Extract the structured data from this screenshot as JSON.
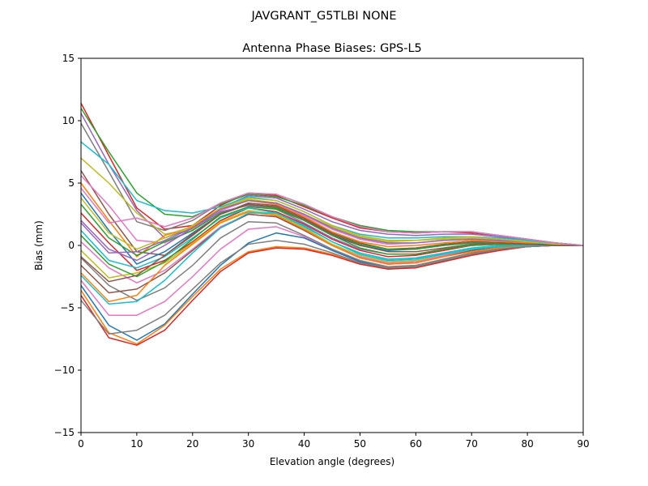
{
  "chart_data": {
    "type": "line",
    "suptitle": "JAVGRANT_G5TLBI NONE",
    "title": "Antenna Phase Biases: GPS-L5",
    "xlabel": "Elevation angle (degrees)",
    "ylabel": "Bias (mm)",
    "xlim": [
      0,
      90
    ],
    "ylim": [
      -15,
      15
    ],
    "xticks": [
      0,
      10,
      20,
      30,
      40,
      50,
      60,
      70,
      80,
      90
    ],
    "yticks": [
      -15,
      -10,
      -5,
      0,
      5,
      10,
      15
    ],
    "ytick_labels": [
      "−15",
      "−10",
      "−5",
      "0",
      "5",
      "10",
      "15"
    ],
    "xtick_labels": [
      "0",
      "10",
      "20",
      "30",
      "40",
      "50",
      "60",
      "70",
      "80",
      "90"
    ],
    "grid": false,
    "legend": "none",
    "x": [
      0,
      5,
      10,
      15,
      20,
      25,
      30,
      35,
      40,
      45,
      50,
      55,
      60,
      65,
      70,
      75,
      80,
      85,
      90
    ],
    "series": [
      {
        "color": "#d62728",
        "values": [
          11.4,
          7.2,
          3.0,
          1.3,
          1.6,
          3.2,
          4.2,
          4.0,
          3.1,
          2.2,
          1.4,
          1.1,
          1.0,
          1.1,
          1.0,
          0.8,
          0.5,
          0.2,
          0.0
        ]
      },
      {
        "color": "#2ca02c",
        "values": [
          11.0,
          7.5,
          4.2,
          2.5,
          2.3,
          3.3,
          4.1,
          3.9,
          3.2,
          2.3,
          1.6,
          1.2,
          1.1,
          1.1,
          1.1,
          0.8,
          0.5,
          0.2,
          0.0
        ]
      },
      {
        "color": "#9467bd",
        "values": [
          10.6,
          6.5,
          2.8,
          0.6,
          1.4,
          3.0,
          4.0,
          3.8,
          2.9,
          1.9,
          1.2,
          0.9,
          0.8,
          0.9,
          0.9,
          0.7,
          0.4,
          0.2,
          0.0
        ]
      },
      {
        "color": "#7f7f7f",
        "values": [
          9.8,
          5.9,
          1.9,
          1.2,
          2.0,
          3.4,
          4.2,
          4.1,
          3.3,
          2.3,
          1.5,
          1.1,
          1.0,
          1.1,
          1.1,
          0.8,
          0.5,
          0.2,
          0.0
        ]
      },
      {
        "color": "#17becf",
        "values": [
          8.3,
          6.5,
          3.6,
          2.8,
          2.6,
          3.1,
          3.9,
          3.6,
          2.7,
          1.6,
          0.9,
          0.6,
          0.6,
          0.7,
          0.7,
          0.6,
          0.4,
          0.2,
          0.0
        ]
      },
      {
        "color": "#bcbd22",
        "values": [
          7.0,
          5.0,
          2.6,
          0.9,
          1.3,
          2.9,
          3.7,
          3.4,
          2.5,
          1.5,
          0.7,
          0.3,
          0.4,
          0.5,
          0.6,
          0.5,
          0.3,
          0.1,
          0.0
        ]
      },
      {
        "color": "#8c564b",
        "values": [
          6.0,
          2.5,
          -0.5,
          -0.8,
          0.8,
          2.5,
          3.4,
          3.2,
          2.2,
          1.0,
          0.2,
          -0.3,
          -0.2,
          0.1,
          0.3,
          0.3,
          0.2,
          0.1,
          0.0
        ]
      },
      {
        "color": "#e377c2",
        "values": [
          5.6,
          3.2,
          0.4,
          0.2,
          1.2,
          2.8,
          3.6,
          3.4,
          2.4,
          1.3,
          0.5,
          0.1,
          0.2,
          0.4,
          0.5,
          0.4,
          0.3,
          0.1,
          0.0
        ]
      },
      {
        "color": "#ff7f0e",
        "values": [
          5.0,
          2.0,
          -0.9,
          0.8,
          1.5,
          2.9,
          3.6,
          3.3,
          2.3,
          1.1,
          0.3,
          -0.1,
          0.0,
          0.2,
          0.4,
          0.3,
          0.2,
          0.1,
          0.0
        ]
      },
      {
        "color": "#1f77b4",
        "values": [
          4.2,
          1.2,
          -1.5,
          -0.5,
          1.0,
          2.5,
          3.3,
          3.0,
          2.0,
          0.8,
          0.0,
          -0.4,
          -0.3,
          0.0,
          0.2,
          0.2,
          0.1,
          0.1,
          0.0
        ]
      },
      {
        "color": "#2ca02c",
        "values": [
          3.3,
          0.6,
          -0.8,
          0.3,
          1.2,
          2.6,
          3.3,
          3.0,
          2.0,
          0.9,
          0.1,
          -0.3,
          -0.3,
          0.0,
          0.2,
          0.2,
          0.1,
          0.0,
          0.0
        ]
      },
      {
        "color": "#d62728",
        "values": [
          2.6,
          0.2,
          -2.0,
          -1.2,
          0.3,
          2.0,
          3.0,
          2.7,
          1.7,
          0.5,
          -0.4,
          -0.9,
          -0.8,
          -0.4,
          0.0,
          0.1,
          0.1,
          0.0,
          0.0
        ]
      },
      {
        "color": "#9467bd",
        "values": [
          1.8,
          -0.6,
          -0.5,
          0.4,
          1.4,
          2.7,
          3.2,
          2.9,
          1.8,
          0.6,
          -0.3,
          -0.7,
          -0.7,
          -0.3,
          0.0,
          0.1,
          0.1,
          0.0,
          0.0
        ]
      },
      {
        "color": "#17becf",
        "values": [
          1.2,
          -1.2,
          -1.8,
          -0.9,
          0.6,
          2.2,
          3.0,
          2.6,
          1.5,
          0.3,
          -0.6,
          -1.1,
          -1.0,
          -0.6,
          -0.2,
          0.0,
          0.0,
          0.0,
          0.0
        ]
      },
      {
        "color": "#e377c2",
        "values": [
          0.3,
          -1.8,
          -3.0,
          -2.0,
          -0.3,
          1.5,
          2.5,
          2.3,
          1.2,
          0.0,
          -0.9,
          -1.4,
          -1.3,
          -0.8,
          -0.4,
          -0.1,
          0.0,
          0.0,
          0.0
        ]
      },
      {
        "color": "#bcbd22",
        "values": [
          -0.4,
          -2.6,
          -2.2,
          -1.4,
          0.2,
          1.9,
          2.8,
          2.5,
          1.4,
          0.1,
          -0.8,
          -1.3,
          -1.2,
          -0.7,
          -0.3,
          -0.1,
          0.0,
          0.0,
          0.0
        ]
      },
      {
        "color": "#7f7f7f",
        "values": [
          -1.0,
          -3.2,
          -4.4,
          -3.4,
          -1.6,
          0.6,
          1.9,
          1.8,
          0.8,
          -0.3,
          -1.2,
          -1.7,
          -1.6,
          -1.1,
          -0.6,
          -0.2,
          -0.1,
          0.0,
          0.0
        ]
      },
      {
        "color": "#8c564b",
        "values": [
          -1.6,
          -3.8,
          -3.5,
          -2.2,
          -0.4,
          1.4,
          2.5,
          2.3,
          1.2,
          0.0,
          -1.0,
          -1.5,
          -1.4,
          -0.9,
          -0.4,
          -0.1,
          0.0,
          0.0,
          0.0
        ]
      },
      {
        "color": "#ff7f0e",
        "values": [
          -2.2,
          -4.5,
          -4.0,
          -1.6,
          0.1,
          1.8,
          2.7,
          2.4,
          1.3,
          0.0,
          -1.0,
          -1.5,
          -1.4,
          -0.9,
          -0.5,
          -0.2,
          0.0,
          0.0,
          0.0
        ]
      },
      {
        "color": "#e377c2",
        "values": [
          -2.8,
          -5.6,
          -5.6,
          -4.5,
          -2.5,
          -0.3,
          1.3,
          1.5,
          0.7,
          -0.4,
          -1.3,
          -1.8,
          -1.7,
          -1.2,
          -0.7,
          -0.3,
          -0.1,
          0.0,
          0.0
        ]
      },
      {
        "color": "#1f77b4",
        "values": [
          -3.2,
          -6.4,
          -7.6,
          -6.3,
          -3.9,
          -1.6,
          0.2,
          1.0,
          0.6,
          -0.4,
          -1.3,
          -1.8,
          -1.7,
          -1.2,
          -0.7,
          -0.3,
          -0.1,
          0.0,
          0.0
        ]
      },
      {
        "color": "#ff7f0e",
        "values": [
          -3.6,
          -7.0,
          -7.9,
          -6.4,
          -4.1,
          -1.9,
          -0.5,
          -0.1,
          -0.2,
          -0.7,
          -1.4,
          -1.8,
          -1.7,
          -1.2,
          -0.7,
          -0.3,
          -0.1,
          0.0,
          0.0
        ]
      },
      {
        "color": "#d62728",
        "values": [
          -4.0,
          -7.4,
          -8.0,
          -6.8,
          -4.4,
          -2.1,
          -0.6,
          -0.2,
          -0.3,
          -0.8,
          -1.5,
          -1.9,
          -1.8,
          -1.3,
          -0.8,
          -0.4,
          -0.1,
          0.0,
          0.0
        ]
      },
      {
        "color": "#7f7f7f",
        "values": [
          -4.4,
          -7.1,
          -6.8,
          -5.6,
          -3.5,
          -1.4,
          0.1,
          0.4,
          0.1,
          -0.6,
          -1.4,
          -1.8,
          -1.7,
          -1.2,
          -0.7,
          -0.3,
          -0.1,
          0.0,
          0.0
        ]
      },
      {
        "color": "#17becf",
        "values": [
          -2.4,
          -4.7,
          -4.5,
          -2.8,
          -0.6,
          1.4,
          2.6,
          2.6,
          1.6,
          0.3,
          -0.7,
          -1.2,
          -1.1,
          -0.7,
          -0.3,
          -0.1,
          0.0,
          0.0,
          0.0
        ]
      },
      {
        "color": "#9467bd",
        "values": [
          2.0,
          -0.3,
          -1.2,
          0.0,
          1.4,
          2.9,
          3.6,
          3.4,
          2.5,
          1.4,
          0.6,
          0.2,
          0.2,
          0.4,
          0.5,
          0.4,
          0.3,
          0.1,
          0.0
        ]
      },
      {
        "color": "#2ca02c",
        "values": [
          0.8,
          -1.5,
          -2.5,
          -1.3,
          0.5,
          2.3,
          3.1,
          2.9,
          2.0,
          0.8,
          -0.2,
          -0.7,
          -0.7,
          -0.3,
          0.0,
          0.1,
          0.1,
          0.0,
          0.0
        ]
      },
      {
        "color": "#bcbd22",
        "values": [
          3.8,
          1.0,
          -0.3,
          0.6,
          1.6,
          3.0,
          3.8,
          3.6,
          2.7,
          1.6,
          0.8,
          0.4,
          0.4,
          0.6,
          0.7,
          0.5,
          0.3,
          0.1,
          0.0
        ]
      },
      {
        "color": "#8c564b",
        "values": [
          -0.9,
          -2.9,
          -2.4,
          -0.8,
          0.9,
          2.5,
          3.3,
          3.1,
          2.1,
          0.9,
          0.0,
          -0.5,
          -0.5,
          -0.2,
          0.1,
          0.2,
          0.1,
          0.0,
          0.0
        ]
      },
      {
        "color": "#e377c2",
        "values": [
          4.6,
          1.8,
          2.2,
          1.5,
          2.2,
          3.4,
          4.2,
          4.1,
          3.3,
          2.3,
          1.5,
          1.1,
          1.0,
          1.1,
          1.1,
          0.8,
          0.5,
          0.2,
          0.0
        ]
      }
    ]
  }
}
